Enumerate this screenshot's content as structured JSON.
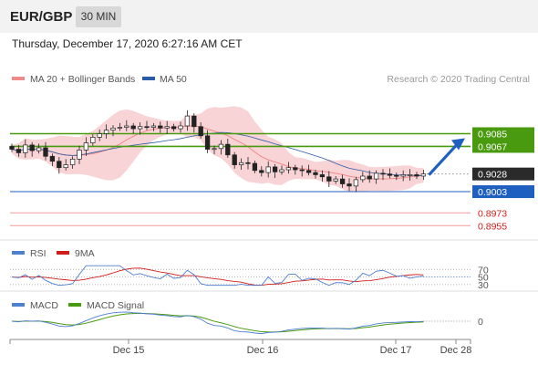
{
  "header": {
    "symbol": "EUR/GBP",
    "timeframe": "30 MIN"
  },
  "datetime": "Thursday, December 17, 2020 6:27:16 AM CET",
  "colors": {
    "candle_up": "#ffffff",
    "candle_down": "#222222",
    "bollinger_band": "#f7cdd0",
    "ma20": "#f08a8a",
    "ma50": "#2b5ca8",
    "resistance": "#4a9a0f",
    "support": "#1f5fbf",
    "target": "#e45b5b",
    "rsi": "#4f7fd1",
    "rsi_ma": "#d11c1c",
    "macd": "#4f7fd1",
    "macd_signal": "#4a9a0f",
    "arrow": "#1f5fbf"
  },
  "chart_data": [
    {
      "type": "candlestick",
      "legend": [
        {
          "name": "MA 20 + Bollinger Bands",
          "color": "#f08a8a"
        },
        {
          "name": "MA 50",
          "color": "#2b5ca8"
        }
      ],
      "credit": "Research © 2020 Trading Central",
      "ylim": [
        0.8945,
        0.9145
      ],
      "x_ticks": [
        "Dec 15",
        "Dec 16",
        "Dec 17",
        "Dec 28"
      ],
      "levels": [
        {
          "label": "0.9085",
          "value": 0.9085,
          "kind": "resistance"
        },
        {
          "label": "0.9067",
          "value": 0.9067,
          "kind": "resistance"
        },
        {
          "label": "0.9028",
          "value": 0.9028,
          "kind": "last-price"
        },
        {
          "label": "0.9003",
          "value": 0.9003,
          "kind": "support"
        },
        {
          "label": "0.8973",
          "value": 0.8973,
          "kind": "target"
        },
        {
          "label": "0.8955",
          "value": 0.8955,
          "kind": "target"
        }
      ],
      "closes": [
        0.9063,
        0.9058,
        0.9069,
        0.9061,
        0.9065,
        0.9053,
        0.9046,
        0.9037,
        0.9041,
        0.9049,
        0.9062,
        0.9072,
        0.908,
        0.9085,
        0.909,
        0.9093,
        0.9094,
        0.9096,
        0.9092,
        0.9095,
        0.9094,
        0.9096,
        0.9093,
        0.9095,
        0.9092,
        0.9096,
        0.911,
        0.9095,
        0.9082,
        0.9063,
        0.9064,
        0.907,
        0.9055,
        0.9041,
        0.9044,
        0.9043,
        0.9033,
        0.903,
        0.9038,
        0.9031,
        0.9034,
        0.9037,
        0.9034,
        0.9033,
        0.903,
        0.9027,
        0.9024,
        0.9018,
        0.9021,
        0.9014,
        0.9011,
        0.902,
        0.9025,
        0.9021,
        0.9029,
        0.9028,
        0.9026,
        0.9025,
        0.9027,
        0.9027,
        0.9025,
        0.9028
      ]
    },
    {
      "type": "line",
      "series": [
        {
          "name": "RSI"
        },
        {
          "name": "9MA"
        }
      ],
      "levels": [
        70,
        50,
        30
      ]
    },
    {
      "type": "line",
      "series": [
        {
          "name": "MACD"
        },
        {
          "name": "MACD Signal"
        }
      ],
      "levels": [
        0
      ]
    }
  ]
}
